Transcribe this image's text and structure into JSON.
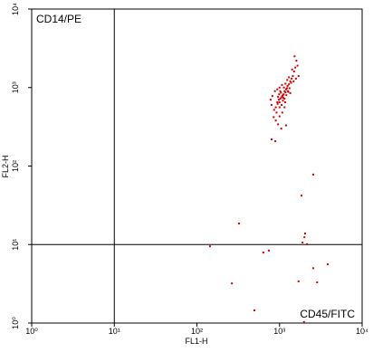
{
  "chart_data": {
    "type": "scatter",
    "annotations": [
      "CD14/PE",
      "CD45/FITC"
    ],
    "x_label": "FL1-H",
    "y_label": "FL2-H",
    "log_x": true,
    "log_y": true,
    "xlim": [
      1,
      10000
    ],
    "ylim": [
      1,
      10000
    ],
    "xticks": [
      {
        "value": 1,
        "label": "10⁰"
      },
      {
        "value": 10,
        "label": "10¹"
      },
      {
        "value": 100,
        "label": "10²"
      },
      {
        "value": 1000,
        "label": "10³"
      },
      {
        "value": 10000,
        "label": "10⁴"
      }
    ],
    "yticks": [
      {
        "value": 1,
        "label": "10⁰"
      },
      {
        "value": 10,
        "label": "10¹"
      },
      {
        "value": 100,
        "label": "10²"
      },
      {
        "value": 1000,
        "label": "10³"
      },
      {
        "value": 10000,
        "label": "10⁴"
      }
    ],
    "quadrant_x": 10,
    "quadrant_y": 10,
    "series": [
      {
        "color": "#cc0000",
        "x": [
          1100,
          1050,
          1150,
          1200,
          980,
          1000,
          1250,
          1300,
          1350,
          950,
          900,
          1120,
          1080,
          1020,
          1180,
          1230,
          1400,
          1450,
          1500,
          1380,
          1320,
          1260,
          860,
          920,
          1000,
          1060,
          1100,
          1150,
          1210,
          1280,
          1040,
          990,
          960,
          1130,
          1180,
          1240,
          1550,
          1600,
          1520,
          1650,
          1700,
          1580,
          850,
          900,
          960,
          1050,
          1200,
          800,
          780,
          820,
          880,
          940,
          1000,
          1070,
          1300,
          1420,
          1480,
          1350,
          1150,
          1080,
          1000,
          940,
          1020,
          1110,
          1170,
          144,
          323,
          2560,
          1845,
          2040,
          2000,
          1900,
          2150,
          638,
          743,
          2560,
          3830,
          265,
          1700,
          2850,
          497,
          1980,
          802,
          890
        ],
        "values": [
          800,
          750,
          900,
          950,
          700,
          650,
          1050,
          1100,
          1200,
          620,
          560,
          820,
          780,
          720,
          870,
          980,
          1300,
          1400,
          1600,
          1150,
          980,
          900,
          520,
          480,
          560,
          600,
          680,
          720,
          800,
          880,
          860,
          820,
          760,
          1000,
          1120,
          1250,
          1800,
          2200,
          2500,
          1900,
          1400,
          1300,
          420,
          380,
          340,
          300,
          330,
          600,
          700,
          780,
          900,
          950,
          1000,
          1080,
          1350,
          1700,
          1200,
          850,
          560,
          480,
          430,
          650,
          900,
          740,
          650,
          9.5,
          18.5,
          78,
          42,
          13.8,
          12.4,
          10.6,
          10.1,
          7.9,
          8.4,
          5.0,
          5.6,
          3.2,
          3.4,
          3.3,
          1.45,
          1.03,
          219,
          207
        ]
      }
    ]
  }
}
